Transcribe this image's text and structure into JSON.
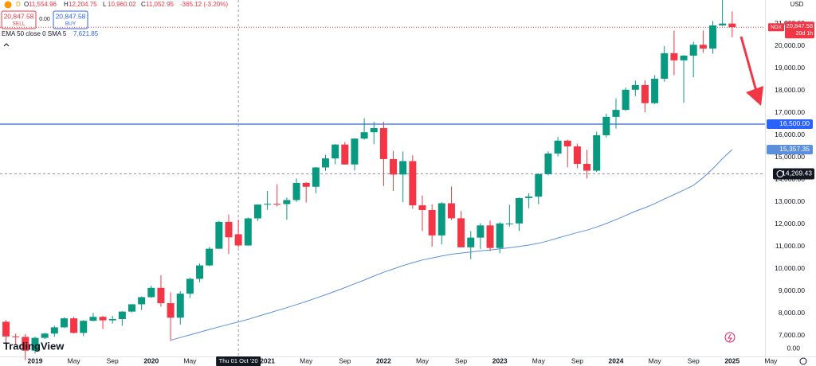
{
  "chart_data": {
    "type": "candlestick",
    "currency": "USD",
    "interval": "D",
    "logo": "TradingView",
    "trade": {
      "sell_price": "20,847.58",
      "sell": "SELL",
      "spread": "0.00",
      "buy_price": "20,847.58",
      "buy": "BUY"
    },
    "crosshair": {
      "index": 24,
      "date_label": "Thu 01 Oct '20",
      "letters": [
        "O",
        "H",
        "L",
        "C"
      ],
      "ohlc_labels": [
        "11,554.96",
        "12,204.75",
        "10,960.02",
        "11,052.95"
      ],
      "change_label": "-365.12 (-3.20%)",
      "price": 14269.43,
      "price_label": "14,269.43"
    },
    "last_price": {
      "value": 20847.58,
      "label": "20,847.58",
      "symbol": "NDX",
      "countdown": "20d 1h",
      "color": "#f23645"
    },
    "hline": {
      "value": 16500,
      "label": "16,500.00",
      "color": "#2962ff"
    },
    "volume_axis_label": "0.00",
    "up_color": "#089981",
    "down_color": "#f23645",
    "categories": [
      null,
      null,
      null,
      "2019",
      null,
      null,
      null,
      "May",
      null,
      null,
      null,
      "Sep",
      null,
      null,
      null,
      "2020",
      null,
      null,
      null,
      "May",
      null,
      null,
      null,
      null,
      null,
      null,
      null,
      "2021",
      null,
      null,
      null,
      "May",
      null,
      null,
      null,
      "Sep",
      null,
      null,
      null,
      "2022",
      null,
      null,
      null,
      "May",
      null,
      null,
      null,
      "Sep",
      null,
      null,
      null,
      "2023",
      null,
      null,
      null,
      "May",
      null,
      null,
      null,
      "Sep",
      null,
      null,
      null,
      "2024",
      null,
      null,
      null,
      "May",
      null,
      null,
      null,
      "Sep",
      null,
      null,
      null,
      "2025",
      null,
      null,
      null,
      "May"
    ],
    "open": [
      7628,
      6967,
      6949,
      6330,
      6906,
      7098,
      7378,
      7782,
      7128,
      7671,
      7848,
      7692,
      7750,
      8084,
      8412,
      8733,
      9150,
      8462,
      7813,
      8890,
      9555,
      10157,
      10906,
      12110,
      11554.96,
      11052,
      12268,
      12888,
      12925,
      12909,
      13091,
      13860,
      13687,
      14554,
      14960,
      15583,
      14689,
      15850,
      16135,
      16320,
      14930,
      14237,
      14838,
      12855,
      12643,
      11504,
      12947,
      12272,
      10971,
      11406,
      11952,
      10940,
      12042,
      12042,
      13181,
      13246,
      14254,
      15179,
      15758,
      15501,
      14715,
      14410,
      16000,
      16826,
      17137,
      18043,
      18254,
      17441,
      18537,
      19683,
      19363,
      19575,
      20061,
      19890,
      20930,
      21012,
      null,
      null,
      null,
      null
    ],
    "high": [
      7700,
      7100,
      7080,
      6960,
      7130,
      7450,
      7830,
      7850,
      7700,
      8030,
      7900,
      7900,
      8100,
      8420,
      8760,
      9250,
      9720,
      8950,
      9000,
      9600,
      10240,
      10990,
      12160,
      12440,
      12204.75,
      12310,
      12900,
      13500,
      13800,
      13200,
      14060,
      13900,
      14570,
      15120,
      15600,
      15700,
      15870,
      16760,
      16600,
      16600,
      15300,
      15270,
      15100,
      13300,
      12900,
      13000,
      13700,
      12600,
      11700,
      12050,
      12170,
      12100,
      12880,
      13200,
      13400,
      14300,
      15280,
      15930,
      15800,
      15620,
      15350,
      16160,
      16970,
      17660,
      18140,
      18460,
      18470,
      18700,
      20000,
      20700,
      19600,
      20200,
      20700,
      21130,
      22130,
      21560,
      null,
      null,
      null,
      null
    ],
    "low": [
      6629,
      6600,
      5900,
      6200,
      6850,
      6950,
      7350,
      7100,
      6980,
      7650,
      7300,
      7550,
      7450,
      8050,
      8150,
      8700,
      8300,
      6770,
      7500,
      8700,
      9400,
      10120,
      10900,
      10680,
      10960.02,
      11040,
      12150,
      12650,
      12800,
      12200,
      13000,
      12980,
      13400,
      14400,
      14700,
      14680,
      14420,
      15800,
      15600,
      13720,
      13500,
      13000,
      12700,
      11700,
      11000,
      11100,
      12200,
      10970,
      10440,
      10900,
      10800,
      10700,
      11900,
      11700,
      12720,
      12900,
      14200,
      15050,
      14560,
      14520,
      14060,
      14350,
      15900,
      16300,
      17100,
      17760,
      17030,
      17400,
      18400,
      18700,
      17460,
      18600,
      19700,
      19660,
      20900,
      20400,
      null,
      null,
      null,
      null
    ],
    "close": [
      6967,
      6949,
      6330,
      6906,
      7098,
      7378,
      7782,
      7128,
      7671,
      7848,
      7692,
      7750,
      8084,
      8412,
      8733,
      9150,
      8462,
      7813,
      8890,
      9555,
      10157,
      10906,
      12110,
      11418,
      11052.95,
      12268,
      12888,
      12925,
      12909,
      13091,
      13860,
      13687,
      14554,
      14960,
      15583,
      14689,
      15850,
      16135,
      16320,
      14930,
      14237,
      14838,
      12855,
      12643,
      11504,
      12947,
      12272,
      10971,
      11406,
      11952,
      10940,
      12042,
      12042,
      13181,
      13246,
      14254,
      15179,
      15758,
      15501,
      14715,
      14410,
      16000,
      16826,
      17137,
      18043,
      18254,
      17441,
      18537,
      19683,
      19363,
      19575,
      20061,
      19890,
      20930,
      21012,
      20847.58,
      null,
      null,
      null,
      null
    ],
    "series": [
      {
        "name": "EMA 50 close 0 SMA 5",
        "color": "#5b8fdc",
        "value_label": "7,621.85",
        "last_label": "15,357.35",
        "values": [
          null,
          null,
          null,
          null,
          null,
          null,
          null,
          null,
          null,
          null,
          null,
          null,
          null,
          null,
          null,
          null,
          null,
          6800,
          6920,
          7040,
          7160,
          7280,
          7400,
          7510,
          7621.85,
          7740,
          7870,
          8000,
          8130,
          8260,
          8400,
          8540,
          8690,
          8840,
          9000,
          9160,
          9330,
          9500,
          9680,
          9850,
          10000,
          10150,
          10280,
          10400,
          10490,
          10580,
          10660,
          10710,
          10760,
          10810,
          10850,
          10900,
          10950,
          11010,
          11070,
          11150,
          11260,
          11390,
          11510,
          11630,
          11740,
          11880,
          12040,
          12210,
          12400,
          12590,
          12750,
          12930,
          13140,
          13340,
          13540,
          13750,
          14100,
          14500,
          14950,
          15357.35,
          null,
          null,
          null,
          null
        ]
      }
    ],
    "ylim": [
      6071,
      22071
    ],
    "yticks": [
      {
        "value": 7000,
        "label": "7,000.00"
      },
      {
        "value": 8000,
        "label": "8,000.00"
      },
      {
        "value": 9000,
        "label": "9,000.00"
      },
      {
        "value": 10000,
        "label": "10,000.00"
      },
      {
        "value": 11000,
        "label": "11,000.00"
      },
      {
        "value": 12000,
        "label": "12,000.00"
      },
      {
        "value": 13000,
        "label": "13,000.00"
      },
      {
        "value": 14000,
        "label": "14,000.00"
      },
      {
        "value": 15000,
        "label": "15,000.00"
      },
      {
        "value": 16000,
        "label": "16,000.00"
      },
      {
        "value": 17000,
        "label": "17,000.00"
      },
      {
        "value": 18000,
        "label": "18,000.00"
      },
      {
        "value": 19000,
        "label": "19,000.00"
      },
      {
        "value": 20000,
        "label": "20,000.00"
      },
      {
        "value": 21000,
        "label": "21,000.00"
      }
    ],
    "grid": false
  }
}
